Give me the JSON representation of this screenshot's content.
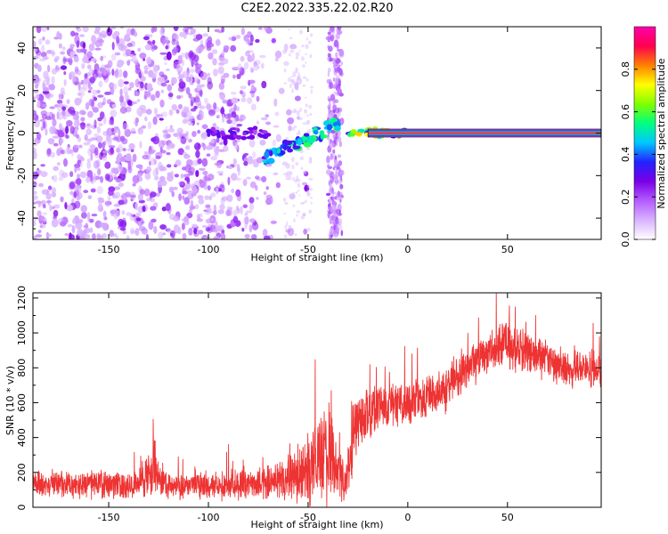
{
  "chart_data": [
    {
      "type": "heatmap",
      "title": "C2E2.2022.335.22.02.R20",
      "xlabel": "Height of straight line (km)",
      "ylabel": "Frequency (Hz)",
      "xlim": [
        -188,
        97
      ],
      "ylim": [
        -50,
        50
      ],
      "xticks": [
        -150,
        -100,
        -50,
        0,
        50
      ],
      "yticks": [
        -40,
        -20,
        0,
        20,
        40
      ],
      "colorbar": {
        "label": "Normalized spectral amplitude",
        "range": [
          0,
          1
        ],
        "ticks": [
          0.0,
          0.2,
          0.4,
          0.6,
          0.8
        ],
        "colors": [
          "#ffffff",
          "#d9b3ff",
          "#b45cff",
          "#7a00e6",
          "#2222ff",
          "#00c8ff",
          "#00ff7f",
          "#80ff00",
          "#ffff00",
          "#ff8000",
          "#ff0050",
          "#ff00aa"
        ]
      },
      "features": {
        "noise_band_x": [
          -188,
          -60
        ],
        "noise_gap_x": [
          -52,
          -40
        ],
        "noise_column_x": [
          -40,
          -33
        ],
        "chirp_segment": {
          "x_start": -72,
          "x_end": -33,
          "y_start": -12,
          "y_end": 5
        },
        "tone_line": {
          "x_start": -30,
          "x_end": 97,
          "frequency": 0
        }
      }
    },
    {
      "type": "line",
      "xlabel": "Height of straight line (km)",
      "ylabel": "SNR (10 * v/v)",
      "xlim": [
        -188,
        97
      ],
      "ylim": [
        0,
        1230
      ],
      "xticks": [
        -150,
        -100,
        -50,
        0,
        50
      ],
      "yticks": [
        0,
        200,
        400,
        600,
        800,
        1000,
        1200
      ],
      "series": [
        {
          "name": "SNR",
          "color": "#ee3333",
          "envelope": {
            "x": [
              -188,
              -135,
              -130,
              -127,
              -124,
              -115,
              -70,
              -55,
              -45,
              -40,
              -35,
              -31,
              -28,
              -24,
              -20,
              -10,
              0,
              10,
              20,
              30,
              40,
              50,
              60,
              70,
              80,
              97
            ],
            "center": [
              130,
              130,
              200,
              260,
              140,
              120,
              140,
              180,
              270,
              300,
              200,
              150,
              360,
              510,
              560,
              590,
              600,
              630,
              700,
              800,
              900,
              940,
              880,
              840,
              800,
              790
            ],
            "spread": [
              70,
              75,
              130,
              170,
              80,
              70,
              90,
              160,
              250,
              270,
              160,
              100,
              210,
              170,
              150,
              130,
              130,
              130,
              140,
              120,
              130,
              140,
              120,
              110,
              110,
              110
            ]
          }
        }
      ]
    }
  ]
}
